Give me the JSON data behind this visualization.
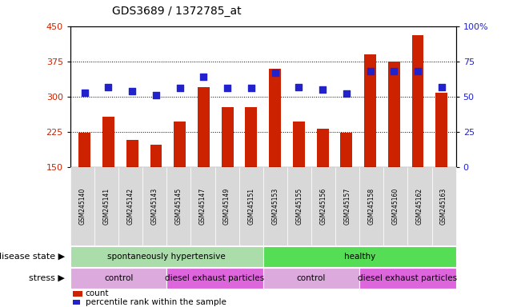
{
  "title": "GDS3689 / 1372785_at",
  "samples": [
    "GSM245140",
    "GSM245141",
    "GSM245142",
    "GSM245143",
    "GSM245145",
    "GSM245147",
    "GSM245149",
    "GSM245151",
    "GSM245153",
    "GSM245155",
    "GSM245156",
    "GSM245157",
    "GSM245158",
    "GSM245160",
    "GSM245162",
    "GSM245163"
  ],
  "counts": [
    224,
    258,
    208,
    198,
    248,
    320,
    278,
    278,
    360,
    248,
    232,
    224,
    390,
    375,
    430,
    308
  ],
  "percentiles": [
    53,
    57,
    54,
    51,
    56,
    64,
    56,
    56,
    67,
    57,
    55,
    52,
    68,
    68,
    68,
    57
  ],
  "ylim_left": [
    150,
    450
  ],
  "ylim_right": [
    0,
    100
  ],
  "yticks_left": [
    150,
    225,
    300,
    375,
    450
  ],
  "yticks_right": [
    0,
    25,
    50,
    75,
    100
  ],
  "bar_color": "#cc2200",
  "dot_color": "#2222cc",
  "bg_color": "#ffffff",
  "grid_yticks": [
    225,
    300,
    375
  ],
  "disease_state_groups": [
    {
      "label": "spontaneously hypertensive",
      "start": 0,
      "end": 7,
      "color": "#aaddaa"
    },
    {
      "label": "healthy",
      "start": 8,
      "end": 15,
      "color": "#55dd55"
    }
  ],
  "stress_groups": [
    {
      "label": "control",
      "start": 0,
      "end": 3,
      "color": "#ddaadd"
    },
    {
      "label": "diesel exhaust particles",
      "start": 4,
      "end": 7,
      "color": "#dd66dd"
    },
    {
      "label": "control",
      "start": 8,
      "end": 11,
      "color": "#ddaadd"
    },
    {
      "label": "diesel exhaust particles",
      "start": 12,
      "end": 15,
      "color": "#dd66dd"
    }
  ],
  "legend_count_label": "count",
  "legend_pct_label": "percentile rank within the sample",
  "disease_state_label": "disease state",
  "stress_label": "stress",
  "bar_width": 0.5
}
